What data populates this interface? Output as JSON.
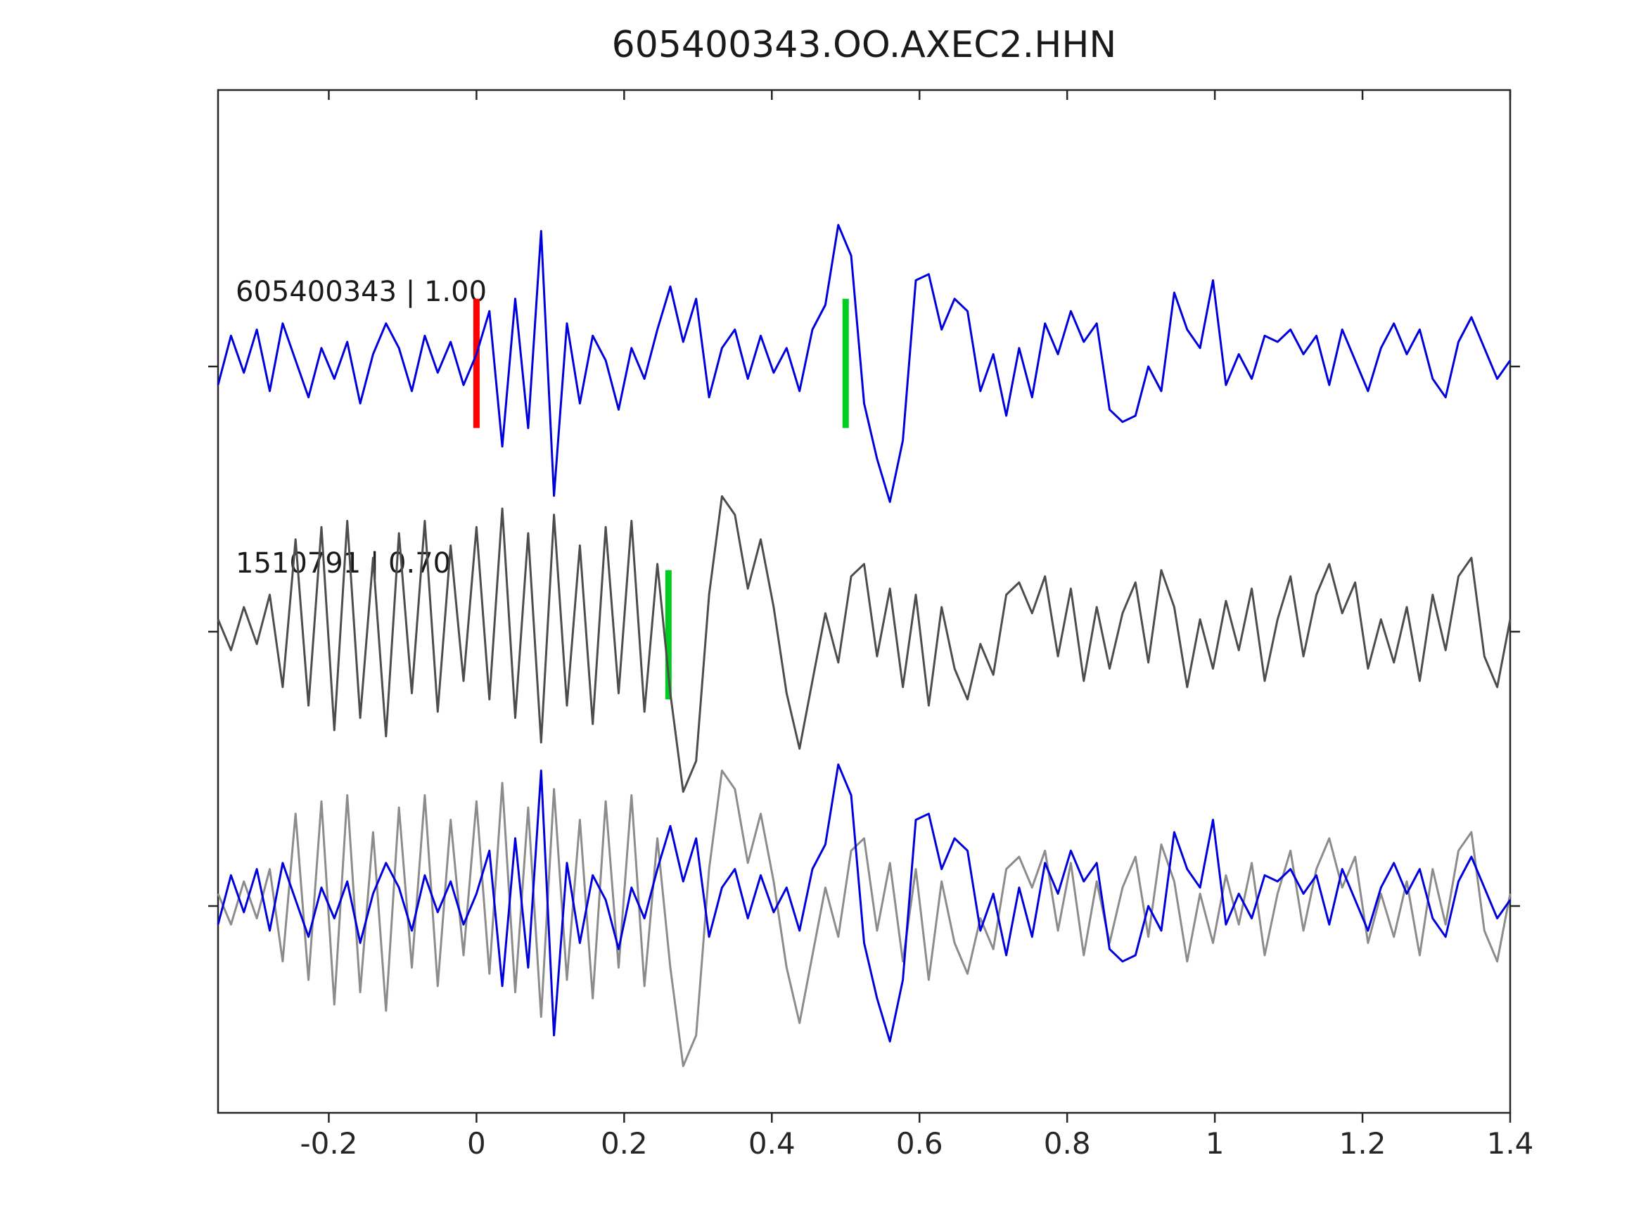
{
  "chart_data": {
    "type": "line",
    "title": "605400343.OO.AXEC2.HHN",
    "xlabel": "",
    "ylabel": "",
    "xlim": [
      -0.35,
      1.4
    ],
    "grid": false,
    "legend_position": "none",
    "x_ticks": {
      "values": [
        -0.2,
        0,
        0.2,
        0.4,
        0.6,
        0.8,
        1,
        1.2,
        1.4
      ],
      "labels": [
        "-0.2",
        "0",
        "0.2",
        "0.4",
        "0.6",
        "0.8",
        "1",
        "1.2",
        "1.4"
      ]
    },
    "colors": {
      "template_blue": "#0000dd",
      "detection_dark_gray": "#4d4d4d",
      "overlay_gray": "#8c8c8c",
      "pick_red": "#ff0000",
      "pick_green": "#00cc22",
      "frame": "#262626"
    },
    "series": {
      "template": {
        "x0": -0.35,
        "dx": 0.0175,
        "values": [
          -0.15,
          0.25,
          -0.05,
          0.3,
          -0.2,
          0.35,
          0.05,
          -0.25,
          0.15,
          -0.1,
          0.2,
          -0.3,
          0.1,
          0.35,
          0.15,
          -0.2,
          0.25,
          -0.05,
          0.2,
          -0.15,
          0.1,
          0.45,
          -0.65,
          0.55,
          -0.5,
          1.1,
          -1.05,
          0.35,
          -0.3,
          0.25,
          0.05,
          -0.35,
          0.15,
          -0.1,
          0.3,
          0.65,
          0.2,
          0.55,
          -0.25,
          0.15,
          0.3,
          -0.1,
          0.25,
          -0.05,
          0.15,
          -0.2,
          0.3,
          0.5,
          1.15,
          0.9,
          -0.3,
          -0.75,
          -1.1,
          -0.6,
          0.7,
          0.75,
          0.3,
          0.55,
          0.45,
          -0.2,
          0.1,
          -0.4,
          0.15,
          -0.25,
          0.35,
          0.1,
          0.45,
          0.2,
          0.35,
          -0.35,
          -0.45,
          -0.4,
          0.0,
          -0.2,
          0.6,
          0.3,
          0.15,
          0.7,
          -0.15,
          0.1,
          -0.1,
          0.25,
          0.2,
          0.3,
          0.1,
          0.25,
          -0.15,
          0.3,
          0.05,
          -0.2,
          0.15,
          0.35,
          0.1,
          0.3,
          -0.1,
          -0.25,
          0.2,
          0.4,
          0.15,
          -0.1,
          0.05
        ]
      },
      "detection": {
        "x0": -0.35,
        "dx": 0.0175,
        "values": [
          0.1,
          -0.15,
          0.2,
          -0.1,
          0.3,
          -0.45,
          0.75,
          -0.6,
          0.85,
          -0.8,
          0.9,
          -0.7,
          0.6,
          -0.85,
          0.8,
          -0.5,
          0.9,
          -0.65,
          0.7,
          -0.4,
          0.85,
          -0.55,
          1.0,
          -0.7,
          0.8,
          -0.9,
          0.95,
          -0.6,
          0.7,
          -0.75,
          0.85,
          -0.5,
          0.9,
          -0.65,
          0.55,
          -0.5,
          -1.3,
          -1.05,
          0.3,
          1.1,
          0.95,
          0.35,
          0.75,
          0.2,
          -0.5,
          -0.95,
          -0.4,
          0.15,
          -0.25,
          0.45,
          0.55,
          -0.2,
          0.35,
          -0.45,
          0.3,
          -0.6,
          0.2,
          -0.3,
          -0.55,
          -0.1,
          -0.35,
          0.3,
          0.4,
          0.15,
          0.45,
          -0.2,
          0.35,
          -0.4,
          0.2,
          -0.3,
          0.15,
          0.4,
          -0.25,
          0.5,
          0.2,
          -0.45,
          0.1,
          -0.3,
          0.25,
          -0.15,
          0.35,
          -0.4,
          0.1,
          0.45,
          -0.2,
          0.3,
          0.55,
          0.15,
          0.4,
          -0.3,
          0.1,
          -0.25,
          0.2,
          -0.4,
          0.3,
          -0.15,
          0.45,
          0.6,
          -0.2,
          -0.45,
          0.1
        ]
      }
    },
    "rows": [
      {
        "label": "605400343 | 1.00",
        "traces": [
          {
            "series": "template",
            "color": "#0000dd"
          }
        ],
        "markers": [
          {
            "x": 0.0,
            "color": "#ff0000",
            "y_from": 0.55,
            "y_to": -0.5,
            "name": "template-pick-marker-red"
          },
          {
            "x": 0.5,
            "color": "#00cc22",
            "y_from": 0.55,
            "y_to": -0.5,
            "name": "template-pick-marker-green"
          }
        ]
      },
      {
        "label": "1510791 | 0.70",
        "traces": [
          {
            "series": "detection",
            "color": "#4d4d4d"
          }
        ],
        "markers": [
          {
            "x": 0.26,
            "color": "#00cc22",
            "y_from": 0.5,
            "y_to": -0.55,
            "name": "detection-pick-marker-green"
          }
        ]
      },
      {
        "label": "",
        "traces": [
          {
            "series": "detection",
            "color": "#8c8c8c"
          },
          {
            "series": "template",
            "color": "#0000dd"
          }
        ],
        "markers": []
      }
    ]
  }
}
